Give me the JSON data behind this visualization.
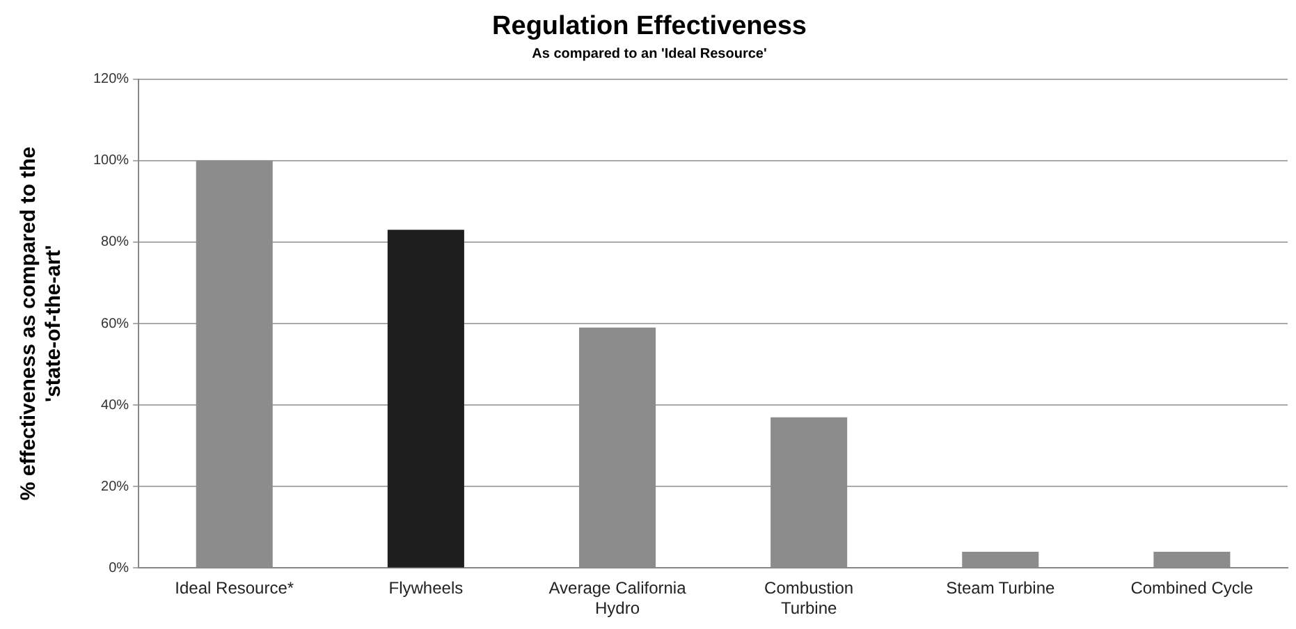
{
  "chart_data": {
    "type": "bar",
    "title": "Regulation Effectiveness",
    "subtitle": "As compared to an 'Ideal Resource'",
    "ylabel": "% effectiveness as compared to the 'state-of-the-art'",
    "categories": [
      "Ideal Resource*",
      "Flywheels",
      "Average California Hydro",
      "Combustion Turbine",
      "Steam Turbine",
      "Combined Cycle"
    ],
    "values": [
      100,
      83,
      59,
      37,
      4,
      4
    ],
    "colors": [
      "#8c8c8c",
      "#1e1e1e",
      "#8c8c8c",
      "#8c8c8c",
      "#8c8c8c",
      "#8c8c8c"
    ],
    "ylim": [
      0,
      120
    ],
    "yticks": [
      {
        "value": 0,
        "label": "0%"
      },
      {
        "value": 20,
        "label": "20%"
      },
      {
        "value": 40,
        "label": "40%"
      },
      {
        "value": 60,
        "label": "60%"
      },
      {
        "value": 80,
        "label": "80%"
      },
      {
        "value": 100,
        "label": "100%"
      },
      {
        "value": 120,
        "label": "120%"
      }
    ],
    "grid": "y",
    "legend": false
  }
}
